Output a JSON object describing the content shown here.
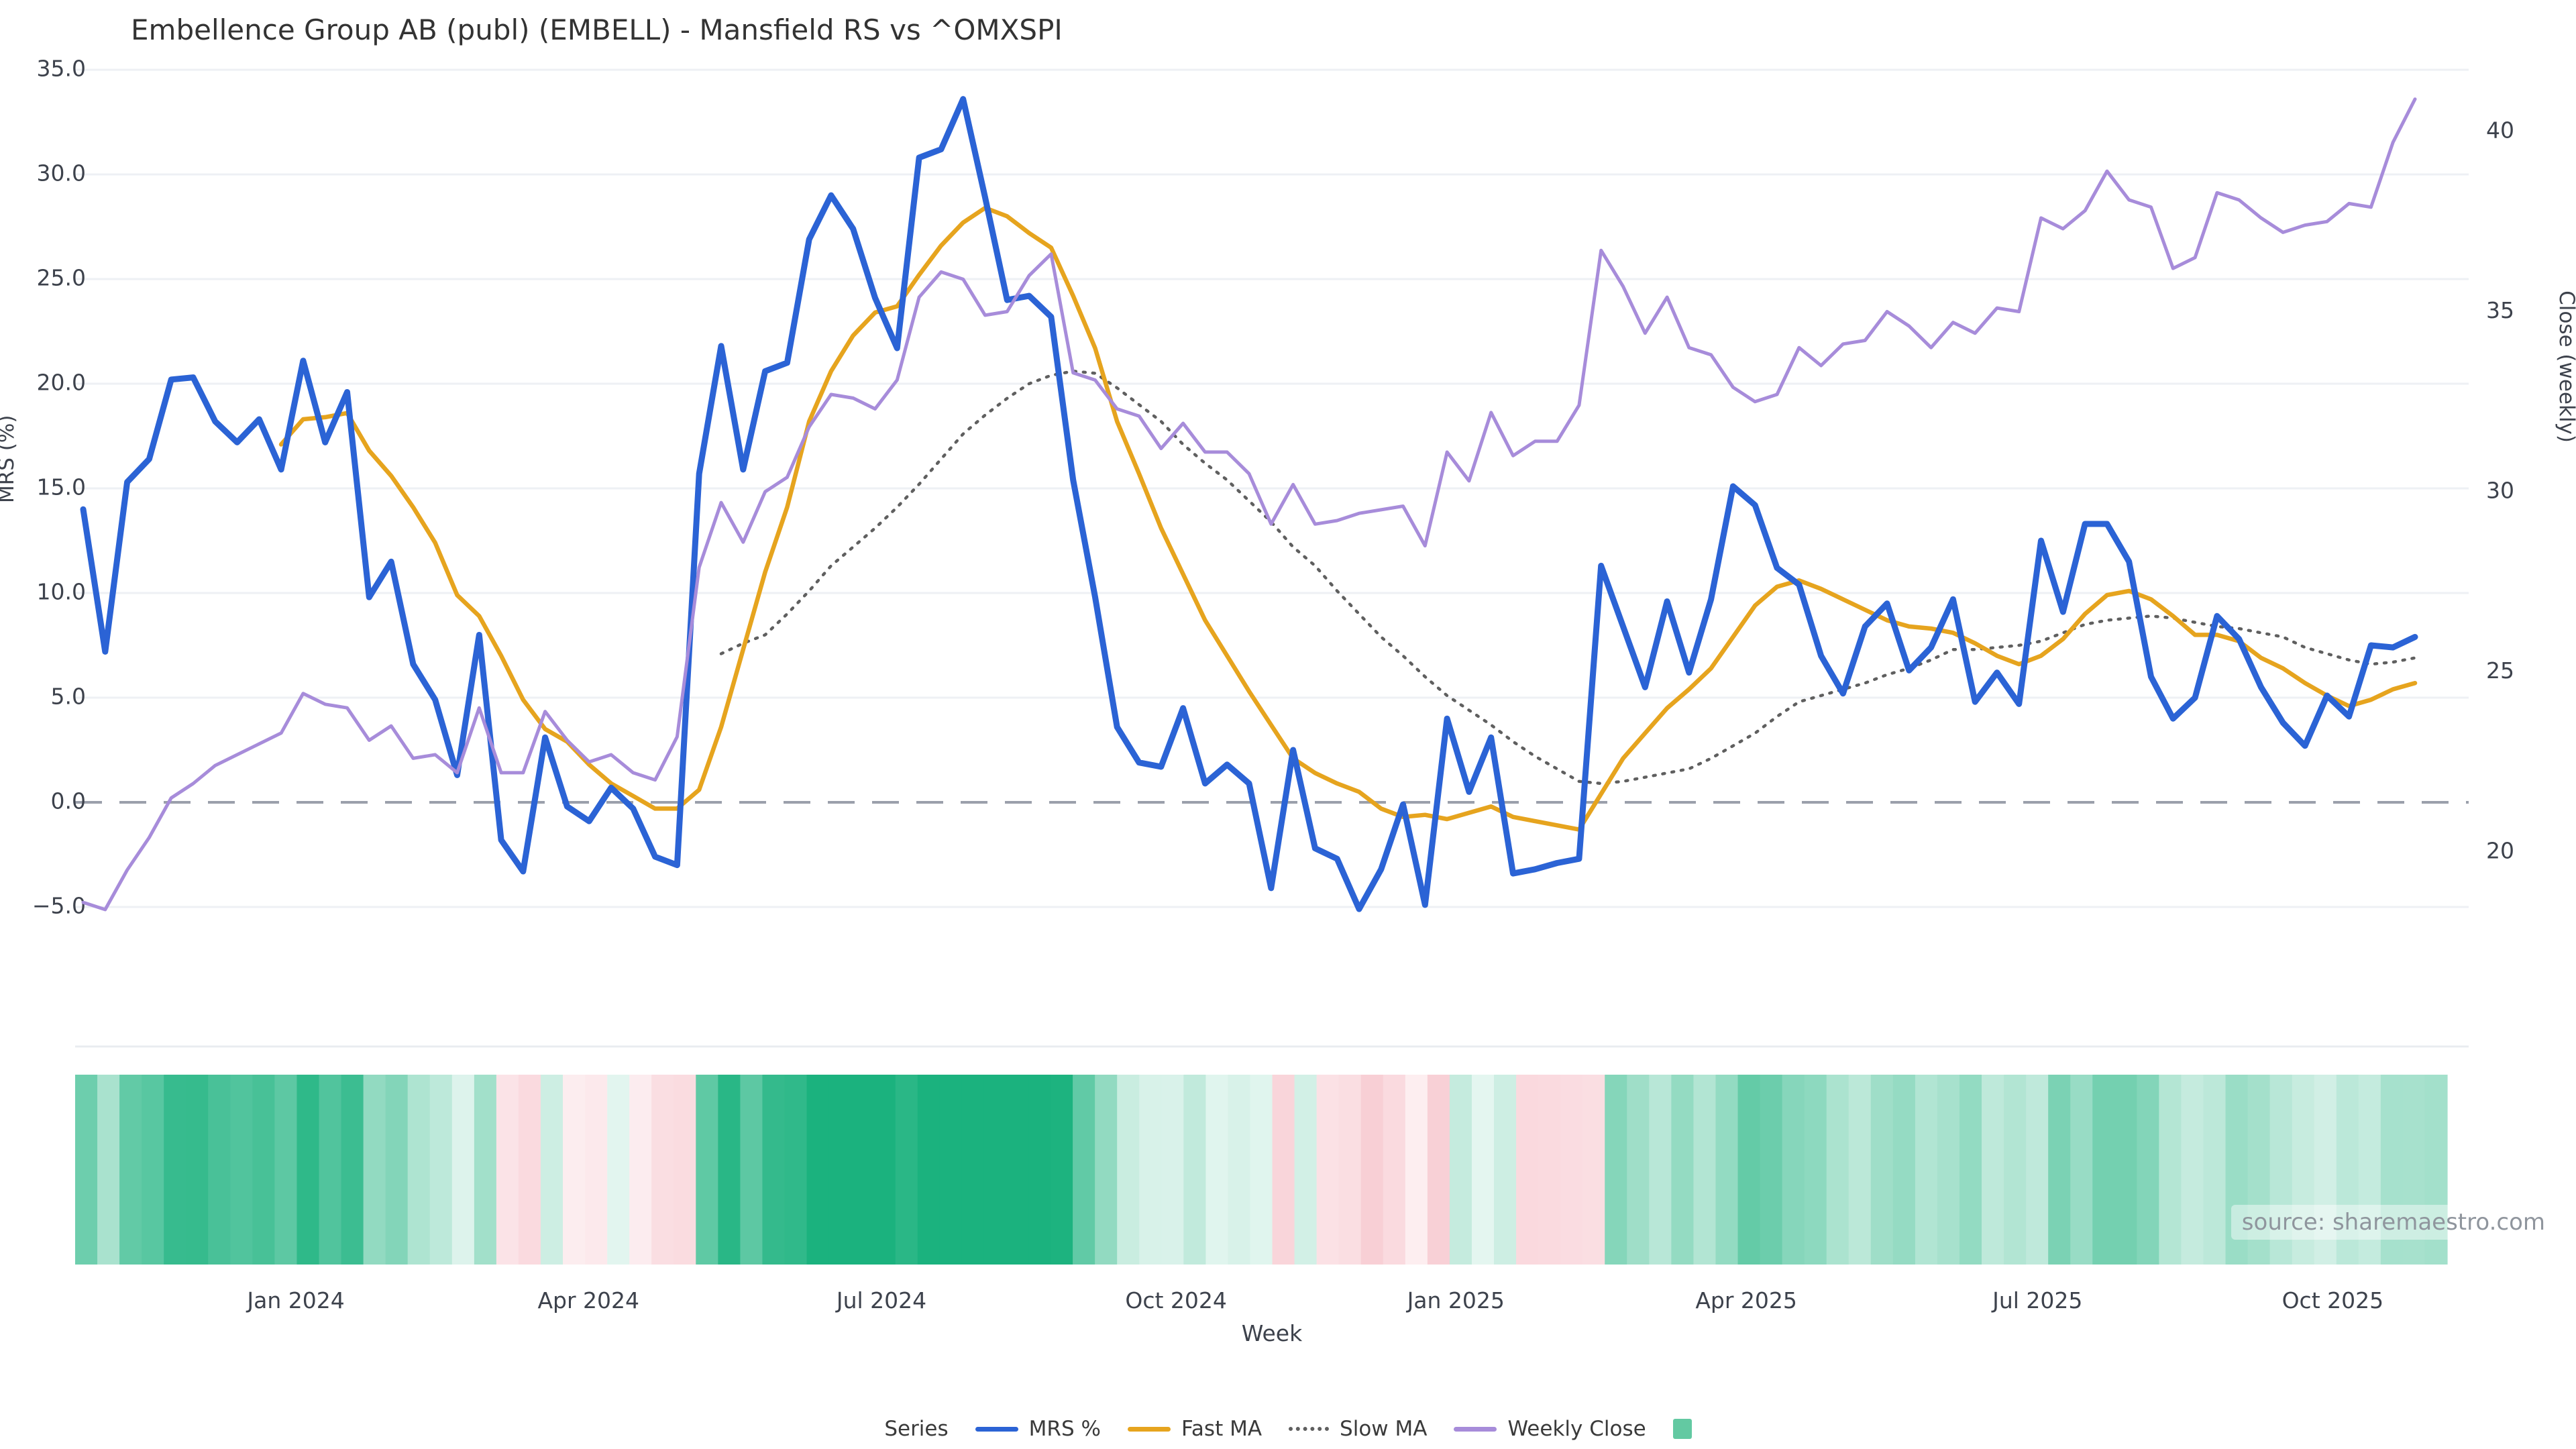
{
  "header": {
    "title": "Embellence Group AB (publ) (EMBELL) - Mansfield RS vs ^OMXSPI"
  },
  "source_note": "source: sharemaestro.com",
  "legend": {
    "title": "Series"
  },
  "colors": {
    "mrs": "#2b63d5",
    "fast_ma": "#e6a41e",
    "slow_ma": "#5f5f5f",
    "weekly_close": "#a78cda",
    "heat_positive": "#1bb27e",
    "heat_negative": "#f2a2ae",
    "heat_legend_square": "#63c9a2",
    "gridline": "#eef0f4",
    "zero_line": "#9ba0ab",
    "tick_text": "#3d424c"
  },
  "chart_data": {
    "type": "line",
    "title": "Embellence Group AB (publ) (EMBELL) - Mansfield RS vs ^OMXSPI",
    "xlabel": "Week",
    "ylabel_left": "MRS (%)",
    "ylabel_right": "Close (weekly)",
    "grid": true,
    "legend_position": "bottom",
    "left_axis": {
      "ticks": [
        "35.0",
        "30.0",
        "25.0",
        "20.0",
        "15.0",
        "10.0",
        "5.0",
        "0.0",
        "−5.0"
      ],
      "tick_values": [
        35,
        30,
        25,
        20,
        15,
        10,
        5,
        0,
        -5
      ],
      "ylim": [
        -11.5,
        35.2
      ]
    },
    "right_axis": {
      "ticks": [
        "40",
        "35",
        "30",
        "25",
        "20"
      ],
      "tick_values": [
        40,
        35,
        30,
        25,
        20
      ],
      "ylim": [
        18.3,
        41.6
      ]
    },
    "x_tick_labels": [
      {
        "label": "Jan 2024",
        "week": 9.67
      },
      {
        "label": "Apr 2024",
        "week": 22.97
      },
      {
        "label": "Jul 2024",
        "week": 36.29
      },
      {
        "label": "Oct 2024",
        "week": 49.68
      },
      {
        "label": "Jan 2025",
        "week": 62.4
      },
      {
        "label": "Apr 2025",
        "week": 75.6
      },
      {
        "label": "Jul 2025",
        "week": 88.84
      },
      {
        "label": "Oct 2025",
        "week": 102.26
      }
    ],
    "zero_reference_line": 0,
    "series": [
      {
        "name": "MRS %",
        "axis": "left",
        "color": "#2b63d5",
        "width": 9,
        "dash": null,
        "values": [
          14,
          7.2,
          15.3,
          16.4,
          20.2,
          20.3,
          18.2,
          17.2,
          18.3,
          15.9,
          21.1,
          17.2,
          19.6,
          9.8,
          11.5,
          6.6,
          4.9,
          1.3,
          8,
          -1.8,
          -3.3,
          3.1,
          -0.2,
          -0.9,
          0.7,
          -0.3,
          -2.6,
          -3,
          15.7,
          21.8,
          15.9,
          20.6,
          21,
          26.9,
          29,
          27.4,
          24.1,
          21.7,
          30.8,
          31.2,
          33.6,
          28.9,
          24,
          24.2,
          23.2,
          15.4,
          9.8,
          3.6,
          1.9,
          1.7,
          4.5,
          0.9,
          1.8,
          0.9,
          -4.1,
          2.5,
          -2.2,
          -2.7,
          -5.1,
          -3.2,
          -0.1,
          -4.9,
          4,
          0.5,
          3.1,
          -3.4,
          -3.2,
          -2.9,
          -2.7,
          11.3,
          8.4,
          5.5,
          9.6,
          6.2,
          9.7,
          15.1,
          14.2,
          11.2,
          10.4,
          7,
          5.2,
          8.4,
          9.5,
          6.3,
          7.4,
          9.7,
          4.8,
          6.2,
          4.7,
          12.5,
          9.1,
          13.3,
          13.3,
          11.5,
          6,
          4,
          5,
          8.9,
          7.8,
          5.5,
          3.8,
          2.7,
          5.1,
          4.1,
          7.5,
          7.4,
          7.9
        ]
      },
      {
        "name": "Fast MA",
        "axis": "left",
        "color": "#e6a41e",
        "width": 6.5,
        "dash": null,
        "values": [
          null,
          null,
          null,
          null,
          null,
          null,
          null,
          null,
          null,
          17.1,
          18.3,
          18.4,
          18.6,
          16.8,
          15.6,
          14.1,
          12.4,
          9.9,
          8.9,
          7,
          4.9,
          3.5,
          2.9,
          1.8,
          0.9,
          0.3,
          -0.3,
          -0.3,
          0.6,
          3.6,
          7.3,
          11,
          14.1,
          18.2,
          20.6,
          22.3,
          23.4,
          23.7,
          25.2,
          26.6,
          27.7,
          28.4,
          28,
          27.2,
          26.5,
          24.2,
          21.7,
          18.2,
          15.7,
          13.1,
          10.9,
          8.7,
          7,
          5.3,
          3.7,
          2.1,
          1.4,
          0.9,
          0.5,
          -0.3,
          -0.7,
          -0.6,
          -0.8,
          -0.5,
          -0.2,
          -0.7,
          -0.9,
          -1.1,
          -1.3,
          0.4,
          2.1,
          3.3,
          4.5,
          5.4,
          6.4,
          7.9,
          9.4,
          10.3,
          10.6,
          10.2,
          9.7,
          9.2,
          8.7,
          8.4,
          8.3,
          8.1,
          7.6,
          7,
          6.6,
          7,
          7.8,
          9,
          9.9,
          10.1,
          9.7,
          8.9,
          8,
          8,
          7.7,
          6.9,
          6.4,
          5.7,
          5.1,
          4.6,
          4.9,
          5.4,
          5.7
        ]
      },
      {
        "name": "Slow MA",
        "axis": "left",
        "color": "#5f5f5f",
        "width": 4.5,
        "dash": "3 11",
        "values": [
          null,
          null,
          null,
          null,
          null,
          null,
          null,
          null,
          null,
          null,
          null,
          null,
          null,
          null,
          null,
          null,
          null,
          null,
          null,
          null,
          null,
          null,
          null,
          null,
          null,
          null,
          null,
          null,
          null,
          7.1,
          7.6,
          8,
          9,
          10.1,
          11.3,
          12.2,
          13.1,
          14.1,
          15.2,
          16.4,
          17.6,
          18.5,
          19.3,
          20,
          20.4,
          20.6,
          20.5,
          19.8,
          19,
          18.2,
          17.1,
          16.2,
          15.4,
          14.4,
          13.4,
          12.2,
          11.3,
          10.1,
          9,
          7.9,
          7,
          6,
          5.1,
          4.4,
          3.7,
          2.9,
          2.2,
          1.6,
          1,
          0.9,
          1,
          1.2,
          1.4,
          1.6,
          2.1,
          2.7,
          3.3,
          4.1,
          4.8,
          5.1,
          5.4,
          5.7,
          6.1,
          6.4,
          6.8,
          7.3,
          7.3,
          7.4,
          7.5,
          7.7,
          8.1,
          8.5,
          8.7,
          8.8,
          8.9,
          8.8,
          8.6,
          8.4,
          8.3,
          8.1,
          7.9,
          7.4,
          7.1,
          6.8,
          6.6,
          6.7,
          6.9
        ]
      },
      {
        "name": "Weekly Close",
        "axis": "right",
        "color": "#a78cda",
        "width": 5,
        "dash": null,
        "values": [
          18.6,
          18.4,
          19.5,
          20.4,
          21.5,
          21.9,
          22.4,
          22.7,
          23,
          23.3,
          24.4,
          24.1,
          24,
          23.1,
          23.5,
          22.6,
          22.7,
          22.2,
          24,
          22.2,
          22.2,
          23.9,
          23.1,
          22.5,
          22.7,
          22.2,
          22,
          23.2,
          27.9,
          29.7,
          28.6,
          30,
          30.4,
          31.8,
          32.7,
          32.6,
          32.3,
          33.1,
          35.4,
          36.1,
          35.9,
          34.9,
          35,
          36,
          36.6,
          33.3,
          33.1,
          32.3,
          32.1,
          31.2,
          31.9,
          31.1,
          31.1,
          30.5,
          29.1,
          30.2,
          29.1,
          29.2,
          29.4,
          29.5,
          29.6,
          28.5,
          31.1,
          30.3,
          32.2,
          31,
          31.4,
          31.4,
          32.4,
          36.7,
          35.7,
          34.4,
          35.4,
          34,
          33.8,
          32.9,
          32.5,
          32.7,
          34,
          33.5,
          34.1,
          34.2,
          35,
          34.6,
          34,
          34.7,
          34.4,
          35.1,
          35,
          37.6,
          37.3,
          37.8,
          38.9,
          38.1,
          37.9,
          36.2,
          36.5,
          38.3,
          38.1,
          37.6,
          37.2,
          37.4,
          37.5,
          38,
          37.9,
          39.7,
          40.9
        ]
      }
    ],
    "heatmap": {
      "source_series": "MRS %",
      "positive_color": "#1bb27e",
      "negative_color": "#f2a2ae",
      "legend_square_color": "#63c9a2"
    }
  }
}
